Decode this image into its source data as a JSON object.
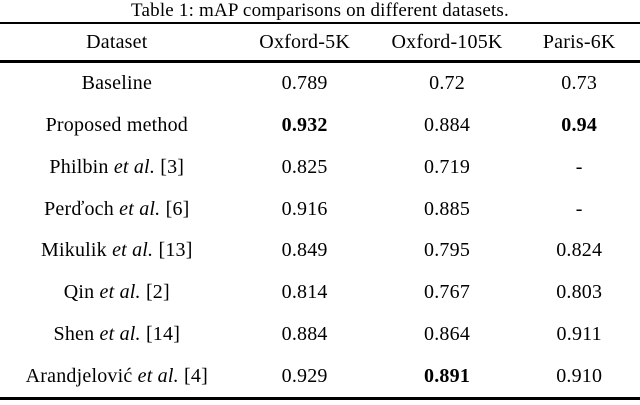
{
  "caption": "Table 1: mAP comparisons on different datasets.",
  "table": {
    "columns": [
      "Dataset",
      "Oxford-5K",
      "Oxford-105K",
      "Paris-6K"
    ],
    "rows": [
      {
        "name": "Baseline",
        "etal": "",
        "ref": "",
        "cells": [
          "0.789",
          "0.72",
          "0.73"
        ]
      },
      {
        "name": "Proposed method",
        "etal": "",
        "ref": "",
        "cells": [
          "0.932",
          "0.884",
          "0.94"
        ]
      },
      {
        "name": "Philbin",
        "etal": "et al.",
        "ref": "[3]",
        "cells": [
          "0.825",
          "0.719",
          "-"
        ]
      },
      {
        "name": "Perďoch",
        "etal": "et al.",
        "ref": "[6]",
        "cells": [
          "0.916",
          "0.885",
          "-"
        ]
      },
      {
        "name": "Mikulik",
        "etal": "et al.",
        "ref": "[13]",
        "cells": [
          "0.849",
          "0.795",
          "0.824"
        ]
      },
      {
        "name": "Qin",
        "etal": "et al.",
        "ref": "[2]",
        "cells": [
          "0.814",
          "0.767",
          "0.803"
        ]
      },
      {
        "name": "Shen",
        "etal": "et al.",
        "ref": "[14]",
        "cells": [
          "0.884",
          "0.864",
          "0.911"
        ]
      },
      {
        "name": "Arandjelović",
        "etal": "et al.",
        "ref": "[4]",
        "cells": [
          "0.929",
          "0.891",
          "0.910"
        ]
      }
    ],
    "bold_values": [
      "0.932",
      "0.94",
      "0.891"
    ]
  }
}
